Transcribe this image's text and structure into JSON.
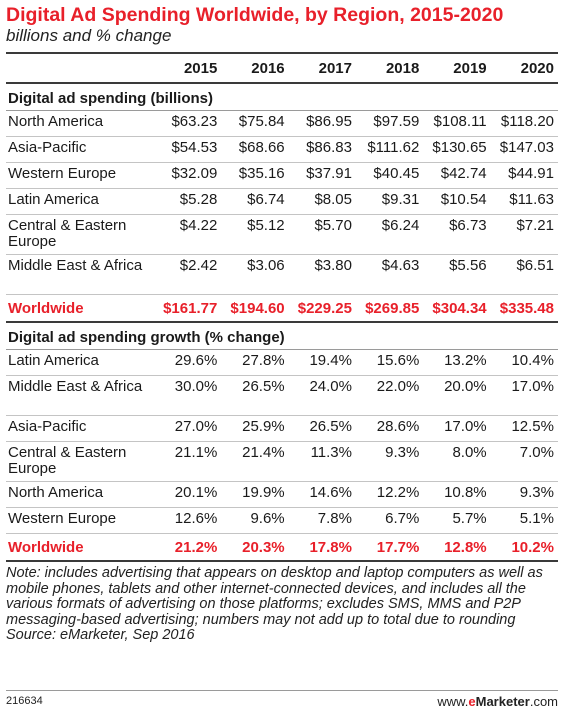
{
  "chart_data": {
    "type": "table",
    "title": "Digital Ad Spending Worldwide, by Region, 2015-2020",
    "subtitle": "billions and % change",
    "columns": [
      "2015",
      "2016",
      "2017",
      "2018",
      "2019",
      "2020"
    ],
    "sections": [
      {
        "name": "Digital ad spending (billions)",
        "rows": [
          {
            "label": "North America",
            "values": [
              "$63.23",
              "$75.84",
              "$86.95",
              "$97.59",
              "$108.11",
              "$118.20"
            ]
          },
          {
            "label": "Asia-Pacific",
            "values": [
              "$54.53",
              "$68.66",
              "$86.83",
              "$111.62",
              "$130.65",
              "$147.03"
            ]
          },
          {
            "label": "Western Europe",
            "values": [
              "$32.09",
              "$35.16",
              "$37.91",
              "$40.45",
              "$42.74",
              "$44.91"
            ]
          },
          {
            "label": "Latin America",
            "values": [
              "$5.28",
              "$6.74",
              "$8.05",
              "$9.31",
              "$10.54",
              "$11.63"
            ]
          },
          {
            "label": "Central & Eastern Europe",
            "values": [
              "$4.22",
              "$5.12",
              "$5.70",
              "$6.24",
              "$6.73",
              "$7.21"
            ]
          },
          {
            "label": "Middle East & Africa",
            "values": [
              "$2.42",
              "$3.06",
              "$3.80",
              "$4.63",
              "$5.56",
              "$6.51"
            ]
          }
        ],
        "total": {
          "label": "Worldwide",
          "values": [
            "$161.77",
            "$194.60",
            "$229.25",
            "$269.85",
            "$304.34",
            "$335.48"
          ]
        }
      },
      {
        "name": "Digital ad spending growth (% change)",
        "rows": [
          {
            "label": "Latin America",
            "values": [
              "29.6%",
              "27.8%",
              "19.4%",
              "15.6%",
              "13.2%",
              "10.4%"
            ]
          },
          {
            "label": "Middle East & Africa",
            "values": [
              "30.0%",
              "26.5%",
              "24.0%",
              "22.0%",
              "20.0%",
              "17.0%"
            ]
          },
          {
            "label": "Asia-Pacific",
            "values": [
              "27.0%",
              "25.9%",
              "26.5%",
              "28.6%",
              "17.0%",
              "12.5%"
            ]
          },
          {
            "label": "Central & Eastern Europe",
            "values": [
              "21.1%",
              "21.4%",
              "11.3%",
              "9.3%",
              "8.0%",
              "7.0%"
            ]
          },
          {
            "label": "North America",
            "values": [
              "20.1%",
              "19.9%",
              "14.6%",
              "12.2%",
              "10.8%",
              "9.3%"
            ]
          },
          {
            "label": "Western Europe",
            "values": [
              "12.6%",
              "9.6%",
              "7.8%",
              "6.7%",
              "5.7%",
              "5.1%"
            ]
          }
        ],
        "total": {
          "label": "Worldwide",
          "values": [
            "21.2%",
            "20.3%",
            "17.8%",
            "17.7%",
            "12.8%",
            "10.2%"
          ]
        }
      }
    ]
  },
  "note": "Note: includes advertising that appears on desktop and laptop computers as well as mobile phones, tablets and other internet-connected devices, and includes all the various formats of advertising on those platforms; excludes SMS, MMS and P2P messaging-based advertising; numbers may not add up to total due to rounding",
  "source": "Source: eMarketer, Sep 2016",
  "figure_id": "216634",
  "brand": {
    "prefix": "www.",
    "e": "e",
    "name": "Marketer",
    "suffix": ".com"
  },
  "colors": {
    "accent": "#e8202a",
    "rule": "#3a3a3a"
  }
}
